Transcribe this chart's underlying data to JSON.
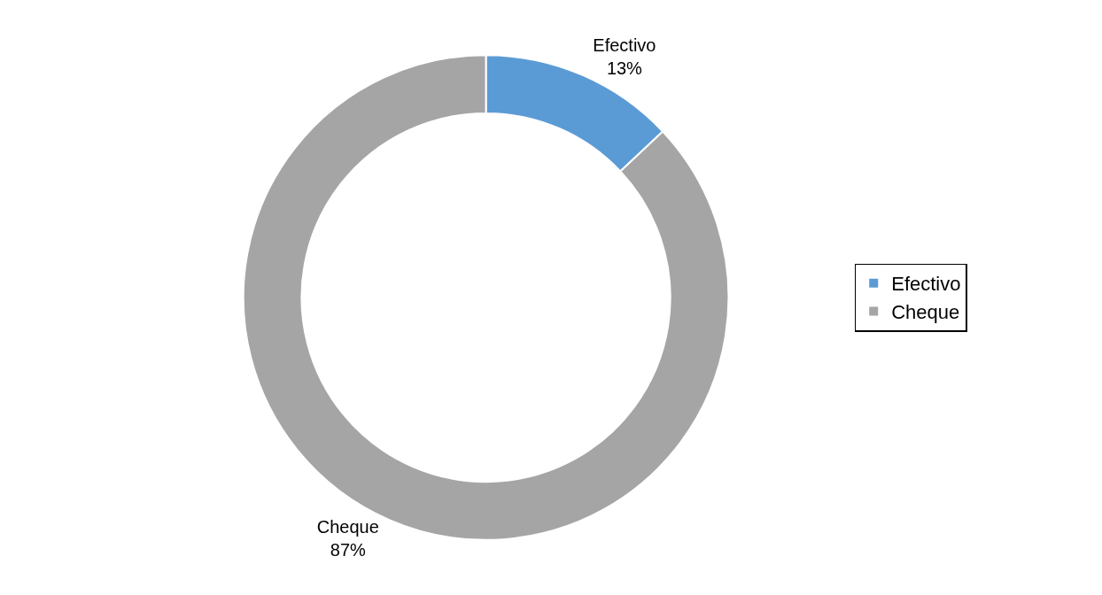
{
  "chart_data": {
    "type": "donut",
    "categories": [
      "Efectivo",
      "Cheque"
    ],
    "values": [
      13,
      87
    ],
    "colors": [
      "#5b9bd5",
      "#a5a5a5"
    ],
    "value_labels": [
      "13%",
      "87%"
    ],
    "legend": "right"
  }
}
